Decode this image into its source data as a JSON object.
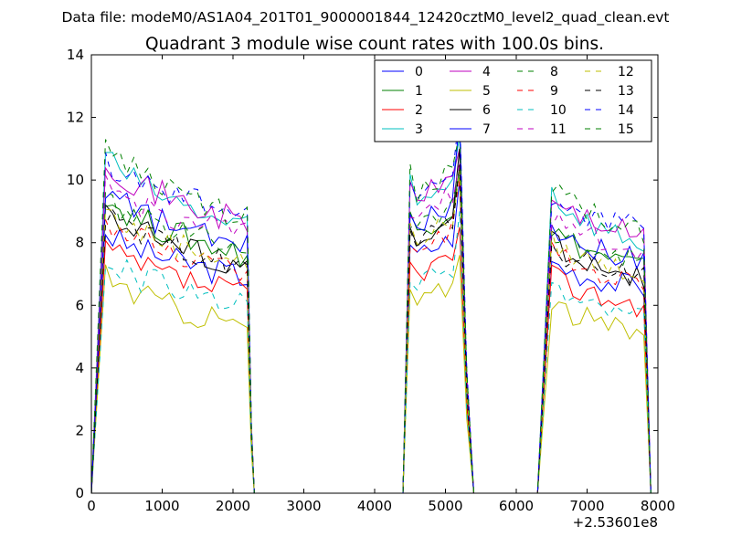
{
  "suptitle": "Data file: modeM0/AS1A04_201T01_9000001844_12420cztM0_level2_quad_clean.evt",
  "chart_data": {
    "type": "line",
    "title": "Quadrant 3 module wise count rates with 100.0s bins.",
    "xlabel": "",
    "ylabel": "",
    "x_offset_label": "+2.53601e8",
    "xlim": [
      0,
      8000
    ],
    "ylim": [
      0,
      14
    ],
    "xticks": [
      0,
      1000,
      2000,
      3000,
      4000,
      5000,
      6000,
      7000,
      8000
    ],
    "yticks": [
      0,
      2,
      4,
      6,
      8,
      10,
      12,
      14
    ],
    "legend_position": "top-right",
    "segments": [
      {
        "start": 200,
        "count": 21
      },
      {
        "start": 4500,
        "count": 8
      },
      {
        "start": 6500,
        "count": 14
      }
    ],
    "series": [
      {
        "name": "0",
        "color": "#0000ff",
        "style": "solid",
        "level_a": 8.4,
        "level_b": 6.9,
        "peak": 10.0
      },
      {
        "name": "1",
        "color": "#008000",
        "style": "solid",
        "level_a": 9.6,
        "level_b": 7.6,
        "peak": 10.4
      },
      {
        "name": "2",
        "color": "#ff0000",
        "style": "solid",
        "level_a": 7.9,
        "level_b": 6.3,
        "peak": 8.5
      },
      {
        "name": "3",
        "color": "#00bfbf",
        "style": "solid",
        "level_a": 11.0,
        "level_b": 8.4,
        "peak": 11.4
      },
      {
        "name": "4",
        "color": "#bf00bf",
        "style": "solid",
        "level_a": 10.8,
        "level_b": 8.6,
        "peak": 11.0
      },
      {
        "name": "5",
        "color": "#bfbf00",
        "style": "solid",
        "level_a": 7.1,
        "level_b": 5.3,
        "peak": 7.6
      },
      {
        "name": "6",
        "color": "#000000",
        "style": "solid",
        "level_a": 9.3,
        "level_b": 7.2,
        "peak": 11.0
      },
      {
        "name": "7",
        "color": "#0000ff",
        "style": "solid",
        "level_a": 9.8,
        "level_b": 7.8,
        "peak": 12.0
      },
      {
        "name": "8",
        "color": "#008000",
        "style": "dashed",
        "level_a": 9.4,
        "level_b": 7.9,
        "peak": 10.2
      },
      {
        "name": "9",
        "color": "#ff0000",
        "style": "dashed",
        "level_a": 8.8,
        "level_b": 7.1,
        "peak": 10.0
      },
      {
        "name": "10",
        "color": "#00bfbf",
        "style": "dashed",
        "level_a": 7.6,
        "level_b": 5.9,
        "peak": 9.0
      },
      {
        "name": "11",
        "color": "#bf00bf",
        "style": "dashed",
        "level_a": 9.9,
        "level_b": 8.2,
        "peak": 10.6
      },
      {
        "name": "12",
        "color": "#bfbf00",
        "style": "dashed",
        "level_a": 9.1,
        "level_b": 7.4,
        "peak": 10.3
      },
      {
        "name": "13",
        "color": "#000000",
        "style": "dashed",
        "level_a": 8.9,
        "level_b": 7.3,
        "peak": 10.5
      },
      {
        "name": "14",
        "color": "#0000ff",
        "style": "dashed",
        "level_a": 10.6,
        "level_b": 8.9,
        "peak": 12.2
      },
      {
        "name": "15",
        "color": "#008000",
        "style": "dashed",
        "level_a": 11.3,
        "level_b": 8.7,
        "peak": 11.5
      }
    ]
  }
}
